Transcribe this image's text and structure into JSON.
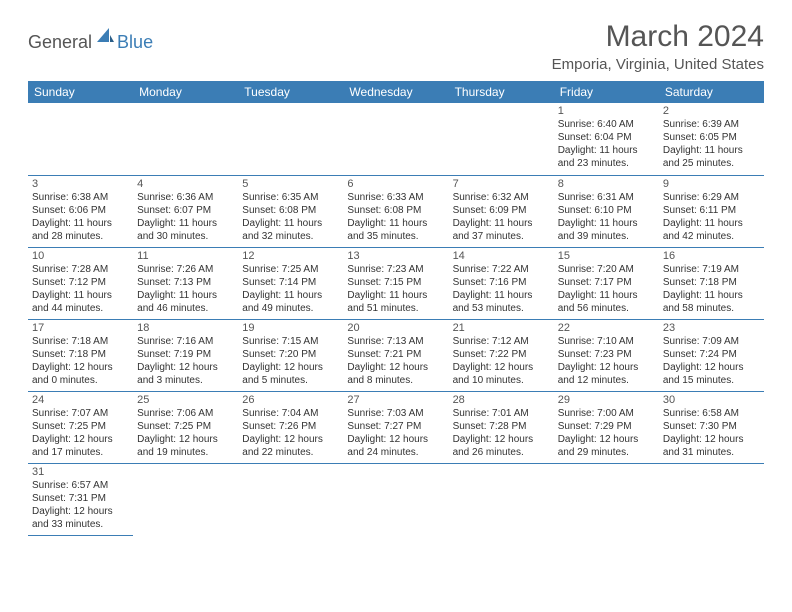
{
  "logo": {
    "general": "General",
    "blue": "Blue",
    "sail_color": "#3b7db5"
  },
  "title": "March 2024",
  "location": "Emporia, Virginia, United States",
  "colors": {
    "header_bg": "#3b7db5",
    "header_text": "#ffffff",
    "border": "#3b7db5",
    "text": "#333333",
    "title_text": "#555555"
  },
  "daysOfWeek": [
    "Sunday",
    "Monday",
    "Tuesday",
    "Wednesday",
    "Thursday",
    "Friday",
    "Saturday"
  ],
  "weeks": [
    [
      null,
      null,
      null,
      null,
      null,
      {
        "n": "1",
        "sr": "6:40 AM",
        "ss": "6:04 PM",
        "dl": "11 hours and 23 minutes."
      },
      {
        "n": "2",
        "sr": "6:39 AM",
        "ss": "6:05 PM",
        "dl": "11 hours and 25 minutes."
      }
    ],
    [
      {
        "n": "3",
        "sr": "6:38 AM",
        "ss": "6:06 PM",
        "dl": "11 hours and 28 minutes."
      },
      {
        "n": "4",
        "sr": "6:36 AM",
        "ss": "6:07 PM",
        "dl": "11 hours and 30 minutes."
      },
      {
        "n": "5",
        "sr": "6:35 AM",
        "ss": "6:08 PM",
        "dl": "11 hours and 32 minutes."
      },
      {
        "n": "6",
        "sr": "6:33 AM",
        "ss": "6:08 PM",
        "dl": "11 hours and 35 minutes."
      },
      {
        "n": "7",
        "sr": "6:32 AM",
        "ss": "6:09 PM",
        "dl": "11 hours and 37 minutes."
      },
      {
        "n": "8",
        "sr": "6:31 AM",
        "ss": "6:10 PM",
        "dl": "11 hours and 39 minutes."
      },
      {
        "n": "9",
        "sr": "6:29 AM",
        "ss": "6:11 PM",
        "dl": "11 hours and 42 minutes."
      }
    ],
    [
      {
        "n": "10",
        "sr": "7:28 AM",
        "ss": "7:12 PM",
        "dl": "11 hours and 44 minutes."
      },
      {
        "n": "11",
        "sr": "7:26 AM",
        "ss": "7:13 PM",
        "dl": "11 hours and 46 minutes."
      },
      {
        "n": "12",
        "sr": "7:25 AM",
        "ss": "7:14 PM",
        "dl": "11 hours and 49 minutes."
      },
      {
        "n": "13",
        "sr": "7:23 AM",
        "ss": "7:15 PM",
        "dl": "11 hours and 51 minutes."
      },
      {
        "n": "14",
        "sr": "7:22 AM",
        "ss": "7:16 PM",
        "dl": "11 hours and 53 minutes."
      },
      {
        "n": "15",
        "sr": "7:20 AM",
        "ss": "7:17 PM",
        "dl": "11 hours and 56 minutes."
      },
      {
        "n": "16",
        "sr": "7:19 AM",
        "ss": "7:18 PM",
        "dl": "11 hours and 58 minutes."
      }
    ],
    [
      {
        "n": "17",
        "sr": "7:18 AM",
        "ss": "7:18 PM",
        "dl": "12 hours and 0 minutes."
      },
      {
        "n": "18",
        "sr": "7:16 AM",
        "ss": "7:19 PM",
        "dl": "12 hours and 3 minutes."
      },
      {
        "n": "19",
        "sr": "7:15 AM",
        "ss": "7:20 PM",
        "dl": "12 hours and 5 minutes."
      },
      {
        "n": "20",
        "sr": "7:13 AM",
        "ss": "7:21 PM",
        "dl": "12 hours and 8 minutes."
      },
      {
        "n": "21",
        "sr": "7:12 AM",
        "ss": "7:22 PM",
        "dl": "12 hours and 10 minutes."
      },
      {
        "n": "22",
        "sr": "7:10 AM",
        "ss": "7:23 PM",
        "dl": "12 hours and 12 minutes."
      },
      {
        "n": "23",
        "sr": "7:09 AM",
        "ss": "7:24 PM",
        "dl": "12 hours and 15 minutes."
      }
    ],
    [
      {
        "n": "24",
        "sr": "7:07 AM",
        "ss": "7:25 PM",
        "dl": "12 hours and 17 minutes."
      },
      {
        "n": "25",
        "sr": "7:06 AM",
        "ss": "7:25 PM",
        "dl": "12 hours and 19 minutes."
      },
      {
        "n": "26",
        "sr": "7:04 AM",
        "ss": "7:26 PM",
        "dl": "12 hours and 22 minutes."
      },
      {
        "n": "27",
        "sr": "7:03 AM",
        "ss": "7:27 PM",
        "dl": "12 hours and 24 minutes."
      },
      {
        "n": "28",
        "sr": "7:01 AM",
        "ss": "7:28 PM",
        "dl": "12 hours and 26 minutes."
      },
      {
        "n": "29",
        "sr": "7:00 AM",
        "ss": "7:29 PM",
        "dl": "12 hours and 29 minutes."
      },
      {
        "n": "30",
        "sr": "6:58 AM",
        "ss": "7:30 PM",
        "dl": "12 hours and 31 minutes."
      }
    ],
    [
      {
        "n": "31",
        "sr": "6:57 AM",
        "ss": "7:31 PM",
        "dl": "12 hours and 33 minutes."
      },
      null,
      null,
      null,
      null,
      null,
      null
    ]
  ],
  "labels": {
    "sunrise": "Sunrise:",
    "sunset": "Sunset:",
    "daylight": "Daylight:"
  }
}
